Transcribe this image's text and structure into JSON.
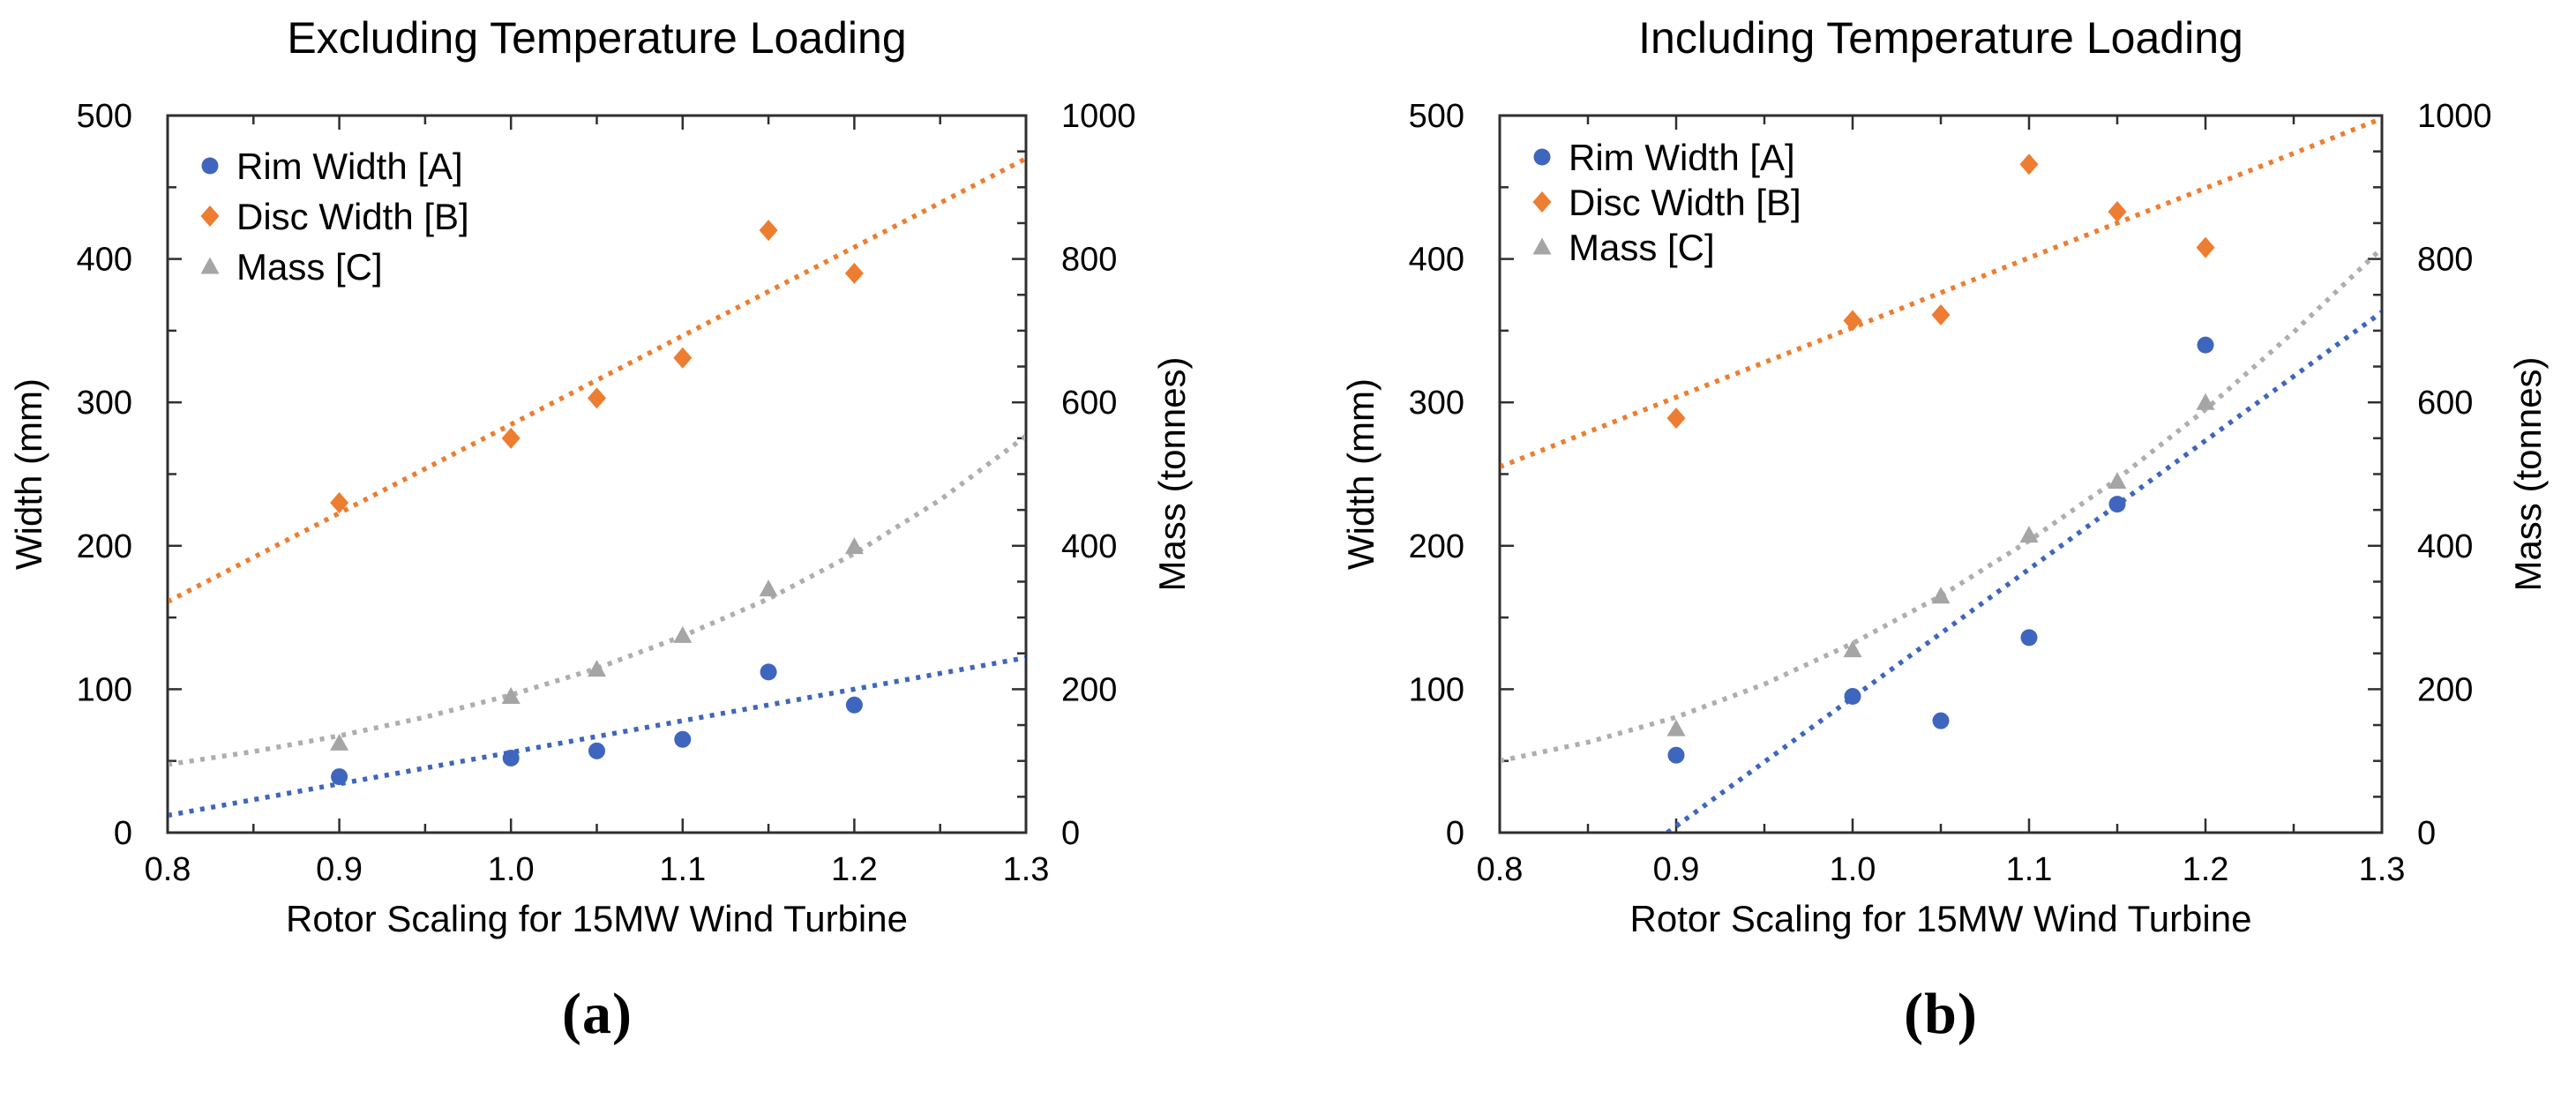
{
  "page": {
    "background": "#ffffff",
    "frame_color": "#2f2f2f",
    "text_color": "#000000"
  },
  "chart_data": [
    {
      "id": "a",
      "type": "scatter",
      "caption": "(a)",
      "title": "Excluding Temperature Loading",
      "x_axis": {
        "label": "Rotor Scaling for 15MW Wind Turbine",
        "min": 0.8,
        "max": 1.3,
        "major_step": 0.1,
        "minor_step": 0.05,
        "tick_labels": [
          "0.8",
          "0.9",
          "1.0",
          "1.1",
          "1.2",
          "1.3"
        ]
      },
      "y_left": {
        "label": "Width (mm)",
        "min": 0,
        "max": 500,
        "major_step": 100,
        "minor_step": 50,
        "tick_labels": [
          "0",
          "100",
          "200",
          "300",
          "400",
          "500"
        ]
      },
      "y_right": {
        "label": "Mass (tonnes)",
        "min": 0,
        "max": 1000,
        "major_step": 200,
        "minor_step": 50,
        "tick_labels": [
          "0",
          "200",
          "400",
          "600",
          "800",
          "1000"
        ]
      },
      "legend_position": "top-left",
      "series": [
        {
          "name": "Rim Width [A]",
          "marker": "circle",
          "color": "#3E66BE",
          "trend_color": "#3E66BE",
          "axis": "left",
          "x": [
            0.9,
            1.0,
            1.05,
            1.1,
            1.15,
            1.2
          ],
          "y": [
            39,
            52,
            57,
            65,
            112,
            89
          ],
          "trend": {
            "x": [
              0.8,
              1.3
            ],
            "y": [
              12,
              122
            ]
          }
        },
        {
          "name": "Disc Width [B]",
          "marker": "diamond",
          "color": "#ED7D31",
          "trend_color": "#ED7D31",
          "axis": "left",
          "x": [
            0.9,
            1.0,
            1.05,
            1.1,
            1.15,
            1.2
          ],
          "y": [
            230,
            275,
            303,
            331,
            420,
            390
          ],
          "trend": {
            "x": [
              0.8,
              1.3
            ],
            "y": [
              161,
              470
            ]
          }
        },
        {
          "name": "Mass [C]",
          "marker": "triangle",
          "color": "#A5A5A5",
          "trend_color": "#AEAEAE",
          "axis": "right",
          "x": [
            0.9,
            1.0,
            1.05,
            1.1,
            1.15,
            1.2
          ],
          "y": [
            125,
            190,
            228,
            275,
            340,
            399
          ],
          "trend": {
            "x": [
              0.8,
              0.85,
              0.9,
              0.95,
              1.0,
              1.05,
              1.1,
              1.15,
              1.2,
              1.25,
              1.3
            ],
            "y": [
              95,
              113,
              135,
              161,
              192,
              229,
              274,
              326,
              389,
              464,
              553
            ]
          }
        }
      ]
    },
    {
      "id": "b",
      "type": "scatter",
      "caption": "(b)",
      "title": "Including Temperature Loading",
      "x_axis": {
        "label": "Rotor Scaling for 15MW Wind Turbine",
        "min": 0.8,
        "max": 1.3,
        "major_step": 0.1,
        "minor_step": 0.05,
        "tick_labels": [
          "0.8",
          "0.9",
          "1.0",
          "1.1",
          "1.2",
          "1.3"
        ]
      },
      "y_left": {
        "label": "Width (mm)",
        "min": 0,
        "max": 500,
        "major_step": 100,
        "minor_step": 50,
        "tick_labels": [
          "0",
          "100",
          "200",
          "300",
          "400",
          "500"
        ]
      },
      "y_right": {
        "label": "Mass (tonnes)",
        "min": 0,
        "max": 1000,
        "major_step": 200,
        "minor_step": 50,
        "tick_labels": [
          "0",
          "200",
          "400",
          "600",
          "800",
          "1000"
        ]
      },
      "legend_position": "top-left",
      "series": [
        {
          "name": "Rim Width [A]",
          "marker": "circle",
          "color": "#3E66BE",
          "trend_color": "#3E66BE",
          "axis": "left",
          "x": [
            0.9,
            1.0,
            1.05,
            1.1,
            1.15,
            1.2
          ],
          "y": [
            54,
            95,
            78,
            136,
            229,
            340
          ],
          "trend": {
            "x": [
              0.895,
              1.3
            ],
            "y": [
              0,
              363
            ]
          }
        },
        {
          "name": "Disc Width [B]",
          "marker": "diamond",
          "color": "#ED7D31",
          "trend_color": "#ED7D31",
          "axis": "left",
          "x": [
            0.9,
            1.0,
            1.05,
            1.1,
            1.15,
            1.2
          ],
          "y": [
            289,
            357,
            361,
            466,
            433,
            408
          ],
          "trend": {
            "x": [
              0.8,
              1.3
            ],
            "y": [
              255,
              498
            ]
          }
        },
        {
          "name": "Mass [C]",
          "marker": "triangle",
          "color": "#A5A5A5",
          "trend_color": "#AEAEAE",
          "axis": "right",
          "x": [
            0.9,
            1.0,
            1.05,
            1.1,
            1.15,
            1.2
          ],
          "y": [
            145,
            255,
            330,
            415,
            490,
            600
          ],
          "trend": {
            "x": [
              0.8,
              0.85,
              0.9,
              0.95,
              1.0,
              1.05,
              1.1,
              1.15,
              1.2,
              1.25,
              1.3
            ],
            "y": [
              100,
              126,
              161,
              207,
              264,
              330,
              407,
              493,
              590,
              698,
              815
            ]
          }
        }
      ]
    }
  ]
}
